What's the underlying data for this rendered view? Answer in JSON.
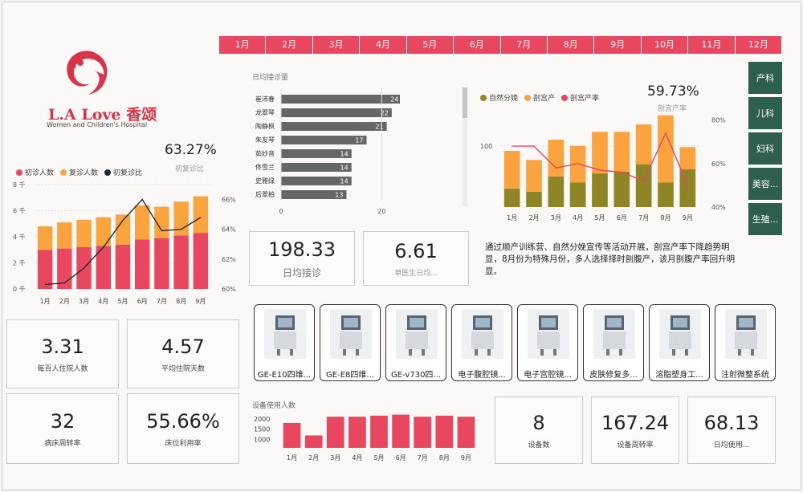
{
  "months": [
    "1月",
    "2月",
    "3月",
    "4月",
    "5月",
    "6月",
    "7月",
    "8月",
    "9月",
    "10月",
    "11月",
    "12月"
  ],
  "departments": [
    "产科",
    "儿科",
    "妇科",
    "美容...",
    "生殖..."
  ],
  "logo": {
    "name": "L.A Love 香颂",
    "subtitle": "Women and Children's Hospital"
  },
  "left_chart": {
    "kpi_value": "63.27%",
    "kpi_label": "初复诊比",
    "legend": [
      "初诊人数",
      "复诊人数",
      "初复诊比"
    ],
    "colors": {
      "first": "#e8475f",
      "return": "#fba43f",
      "ratio": "#1c2b3a"
    },
    "chart_data": {
      "type": "bar",
      "categories": [
        "1月",
        "2月",
        "3月",
        "4月",
        "5月",
        "6月",
        "7月",
        "8月",
        "9月"
      ],
      "series": [
        {
          "name": "初诊人数",
          "values": [
            3000,
            3100,
            3200,
            3300,
            3400,
            3800,
            3900,
            4100,
            4300
          ]
        },
        {
          "name": "复诊人数",
          "values": [
            1800,
            2000,
            2100,
            2200,
            2300,
            2600,
            2400,
            2600,
            2800
          ]
        },
        {
          "name": "初复诊比",
          "values": [
            60.3,
            60.4,
            61.4,
            62.8,
            64.6,
            66.0,
            63.9,
            64.0,
            64.8
          ]
        }
      ],
      "yticks_left": [
        "0 千",
        "2 千",
        "4 千",
        "6 千",
        "8 千"
      ],
      "yticks_right": [
        "60%",
        "62%",
        "64%",
        "66%"
      ],
      "ylim": [
        0,
        8000
      ],
      "y2lim": [
        60,
        67
      ]
    }
  },
  "daily_visits": {
    "title": "日均接诊量",
    "chart_data": {
      "type": "bar",
      "categories": [
        "崔沛春",
        "龙翠琴",
        "陶静枫",
        "朱友琴",
        "茹妙音",
        "佟雪兰",
        "史雅绿",
        "后翠柏"
      ],
      "values": [
        24,
        22,
        21,
        17,
        14,
        14,
        14,
        13
      ],
      "xticks": [
        "0",
        "20"
      ],
      "xlim": [
        0,
        30
      ]
    }
  },
  "right_chart": {
    "kpi_value": "59.73%",
    "kpi_label": "剖宫产率",
    "legend": [
      "自然分娩",
      "剖宫产",
      "剖宫产率"
    ],
    "colors": {
      "natural": "#8f8526",
      "cesarean": "#fba43f",
      "rate": "#e8475f"
    },
    "chart_data": {
      "type": "bar",
      "categories": [
        "1月",
        "2月",
        "3月",
        "4月",
        "5月",
        "6月",
        "7月",
        "8月",
        "9月"
      ],
      "series": [
        {
          "name": "自然分娩",
          "values": [
            30,
            25,
            50,
            40,
            55,
            58,
            70,
            40,
            62
          ]
        },
        {
          "name": "剖宫产",
          "values": [
            62,
            52,
            60,
            60,
            68,
            65,
            65,
            110,
            36
          ]
        },
        {
          "name": "剖宫产率",
          "values": [
            68,
            68,
            58,
            60,
            57,
            56,
            52,
            74,
            50
          ]
        }
      ],
      "yticks_left": [
        "100"
      ],
      "yticks_right": [
        "40%",
        "60%",
        "80%"
      ],
      "ylim": [
        0,
        160
      ],
      "y2lim": [
        40,
        85
      ]
    }
  },
  "cards": {
    "daily_visit": {
      "value": "198.33",
      "label": "日均接诊"
    },
    "per_doctor": {
      "value": "6.61",
      "label": "单医生日均..."
    },
    "per100": {
      "value": "3.31",
      "label": "每百人住院人数"
    },
    "avg_stay": {
      "value": "4.57",
      "label": "平均住院天数"
    },
    "bed_turn": {
      "value": "32",
      "label": "病床周转率"
    },
    "bed_use": {
      "value": "55.66%",
      "label": "床位利用率"
    },
    "equip_count": {
      "value": "8",
      "label": "设备数"
    },
    "equip_turn": {
      "value": "167.24",
      "label": "设备周转率"
    },
    "daily_use": {
      "value": "68.13",
      "label": "日均使用..."
    }
  },
  "description": "通过顺产训练营、自然分娩宣传等活动开展，剖宫产率下降趋势明显，8月份为特殊月份，多人选择择时剖腹产，该月剖腹产率回升明显。",
  "equipment": [
    "GE-E10四维...",
    "GE-E8四维...",
    "GE-v730四...",
    "电子腹腔镜...",
    "电子宫腔镜...",
    "皮肤修复多...",
    "溶脂塑身工...",
    "注射微整系统"
  ],
  "equip_usage": {
    "title": "设备使用人数",
    "color": "#e8475f",
    "chart_data": {
      "type": "bar",
      "categories": [
        "1月",
        "2月",
        "3月",
        "4月",
        "5月",
        "6月",
        "7月",
        "8月",
        "9月"
      ],
      "values": [
        1800,
        1200,
        2100,
        2100,
        2150,
        2200,
        2100,
        2150,
        2100
      ],
      "yticks": [
        "1000",
        "1500",
        "2000"
      ],
      "ylim": [
        600,
        2300
      ]
    }
  }
}
